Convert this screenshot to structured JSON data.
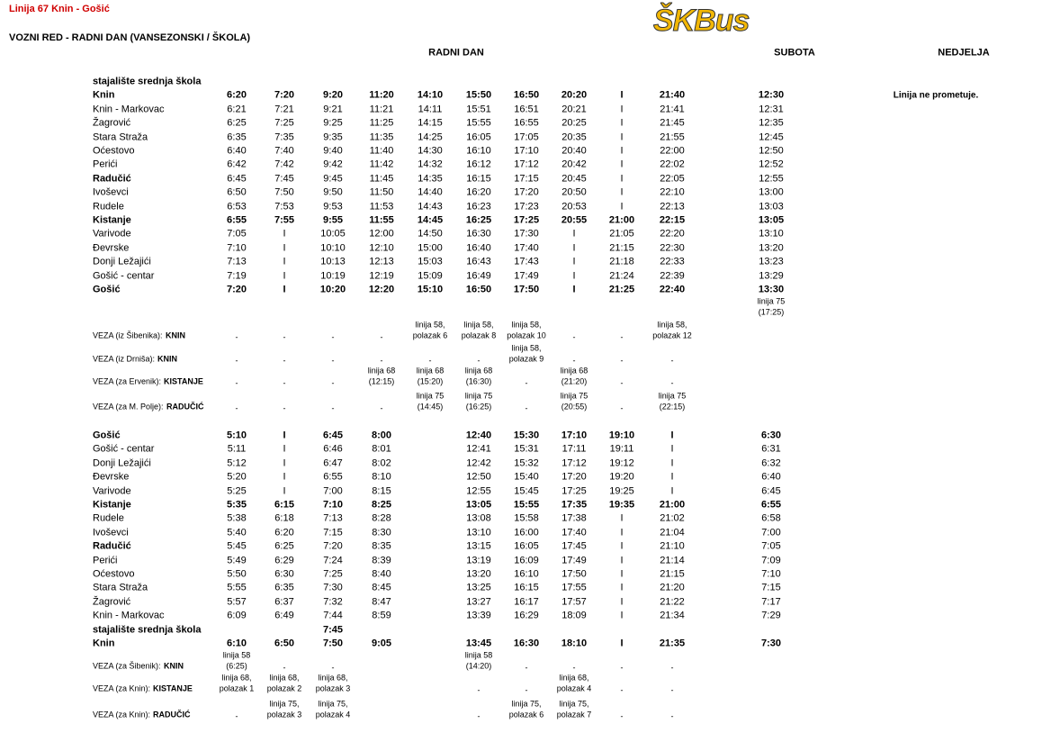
{
  "header": {
    "title": "Linija 67 Knin - Gošić",
    "subtitle": "VOZNI RED - RADNI DAN (VANSEZONSKI / ŠKOLA)",
    "logo": "ŠKBus"
  },
  "columns": {
    "weekday": "RADNI DAN",
    "saturday": "SUBOTA",
    "sunday": "NEDJELJA"
  },
  "sunday_note": "Linija ne prometuje.",
  "outbound": {
    "rows": [
      {
        "stop": "stajalište srednja škola"
      },
      {
        "stop": "Knin",
        "times": [
          "6:20",
          "7:20",
          "9:20",
          "11:20",
          "14:10",
          "15:50",
          "16:50",
          "20:20",
          "I",
          "21:40",
          "12:30"
        ]
      },
      {
        "stop": "Knin - Markovac",
        "times": [
          "6:21",
          "7:21",
          "9:21",
          "11:21",
          "14:11",
          "15:51",
          "16:51",
          "20:21",
          "I",
          "21:41",
          "12:31"
        ]
      },
      {
        "stop": "Žagrović",
        "times": [
          "6:25",
          "7:25",
          "9:25",
          "11:25",
          "14:15",
          "15:55",
          "16:55",
          "20:25",
          "I",
          "21:45",
          "12:35"
        ]
      },
      {
        "stop": "Stara Straža",
        "times": [
          "6:35",
          "7:35",
          "9:35",
          "11:35",
          "14:25",
          "16:05",
          "17:05",
          "20:35",
          "I",
          "21:55",
          "12:45"
        ]
      },
      {
        "stop": "Oćestovo",
        "times": [
          "6:40",
          "7:40",
          "9:40",
          "11:40",
          "14:30",
          "16:10",
          "17:10",
          "20:40",
          "I",
          "22:00",
          "12:50"
        ]
      },
      {
        "stop": "Perići",
        "times": [
          "6:42",
          "7:42",
          "9:42",
          "11:42",
          "14:32",
          "16:12",
          "17:12",
          "20:42",
          "I",
          "22:02",
          "12:52"
        ]
      },
      {
        "stop": "Radučić",
        "times": [
          "6:45",
          "7:45",
          "9:45",
          "11:45",
          "14:35",
          "16:15",
          "17:15",
          "20:45",
          "I",
          "22:05",
          "12:55"
        ]
      },
      {
        "stop": "Ivoševci",
        "times": [
          "6:50",
          "7:50",
          "9:50",
          "11:50",
          "14:40",
          "16:20",
          "17:20",
          "20:50",
          "I",
          "22:10",
          "13:00"
        ]
      },
      {
        "stop": "Rudele",
        "times": [
          "6:53",
          "7:53",
          "9:53",
          "11:53",
          "14:43",
          "16:23",
          "17:23",
          "20:53",
          "I",
          "22:13",
          "13:03"
        ]
      },
      {
        "stop": "Kistanje",
        "times": [
          "6:55",
          "7:55",
          "9:55",
          "11:55",
          "14:45",
          "16:25",
          "17:25",
          "20:55",
          "21:00",
          "22:15",
          "13:05"
        ]
      },
      {
        "stop": "Varivode",
        "times": [
          "7:05",
          "I",
          "10:05",
          "12:00",
          "14:50",
          "16:30",
          "17:30",
          "I",
          "21:05",
          "22:20",
          "13:10"
        ]
      },
      {
        "stop": "Đevrske",
        "times": [
          "7:10",
          "I",
          "10:10",
          "12:10",
          "15:00",
          "16:40",
          "17:40",
          "I",
          "21:15",
          "22:30",
          "13:20"
        ]
      },
      {
        "stop": "Donji Ležajići",
        "times": [
          "7:13",
          "I",
          "10:13",
          "12:13",
          "15:03",
          "16:43",
          "17:43",
          "I",
          "21:18",
          "22:33",
          "13:23"
        ]
      },
      {
        "stop": "Gošić - centar",
        "times": [
          "7:19",
          "I",
          "10:19",
          "12:19",
          "15:09",
          "16:49",
          "17:49",
          "I",
          "21:24",
          "22:39",
          "13:29"
        ]
      },
      {
        "stop": "Gošić",
        "times": [
          "7:20",
          "I",
          "10:20",
          "12:20",
          "15:10",
          "16:50",
          "17:50",
          "I",
          "21:25",
          "22:40",
          "13:30"
        ]
      }
    ],
    "saturday_note": [
      "linija 75",
      "(17:25)"
    ],
    "connections": [
      {
        "label": "VEZA (iz Šibenika):",
        "stop": "KNIN",
        "cells": [
          "-",
          "-",
          "-",
          "-",
          [
            "linija 58,",
            "polazak 6"
          ],
          [
            "linija 58,",
            "polazak 8"
          ],
          [
            "linija 58,",
            "polazak 10"
          ],
          "-",
          "-",
          [
            "linija 58,",
            "polazak 12"
          ]
        ]
      },
      {
        "label": "VEZA (iz Drniša):",
        "stop": "KNIN",
        "cells": [
          "-",
          "-",
          "-",
          "-",
          "-",
          "-",
          [
            "linija 58,",
            "polazak 9"
          ],
          "-",
          "-",
          "-"
        ]
      },
      {
        "label": "VEZA (za Ervenik):",
        "stop": "KISTANJE",
        "cells": [
          "-",
          "-",
          "-",
          [
            "linija 68",
            "(12:15)"
          ],
          [
            "linija 68",
            "(15:20)"
          ],
          [
            "linija 68",
            "(16:30)"
          ],
          "-",
          [
            "linija 68",
            "(21:20)"
          ],
          "-",
          "-"
        ]
      },
      {
        "label": "VEZA (za M. Polje):",
        "stop": "RADUČIĆ",
        "cells": [
          "-",
          "-",
          "-",
          "-",
          [
            "linija 75",
            "(14:45)"
          ],
          [
            "linija 75",
            "(16:25)"
          ],
          "-",
          [
            "linija 75",
            "(20:55)"
          ],
          "-",
          [
            "linija 75",
            "(22:15)"
          ]
        ]
      }
    ]
  },
  "inbound": {
    "rows": [
      {
        "stop": "Gošić",
        "times": [
          "5:10",
          "I",
          "6:45",
          "8:00",
          null,
          "12:40",
          "15:30",
          "17:10",
          "19:10",
          "I",
          "6:30"
        ]
      },
      {
        "stop": "Gošić - centar",
        "times": [
          "5:11",
          "I",
          "6:46",
          "8:01",
          null,
          "12:41",
          "15:31",
          "17:11",
          "19:11",
          "I",
          "6:31"
        ]
      },
      {
        "stop": "Donji Ležajići",
        "times": [
          "5:12",
          "I",
          "6:47",
          "8:02",
          null,
          "12:42",
          "15:32",
          "17:12",
          "19:12",
          "I",
          "6:32"
        ]
      },
      {
        "stop": "Đevrske",
        "times": [
          "5:20",
          "I",
          "6:55",
          "8:10",
          null,
          "12:50",
          "15:40",
          "17:20",
          "19:20",
          "I",
          "6:40"
        ]
      },
      {
        "stop": "Varivode",
        "times": [
          "5:25",
          "I",
          "7:00",
          "8:15",
          null,
          "12:55",
          "15:45",
          "17:25",
          "19:25",
          "I",
          "6:45"
        ]
      },
      {
        "stop": "Kistanje",
        "times": [
          "5:35",
          "6:15",
          "7:10",
          "8:25",
          null,
          "13:05",
          "15:55",
          "17:35",
          "19:35",
          "21:00",
          "6:55"
        ]
      },
      {
        "stop": "Rudele",
        "times": [
          "5:38",
          "6:18",
          "7:13",
          "8:28",
          null,
          "13:08",
          "15:58",
          "17:38",
          "I",
          "21:02",
          "6:58"
        ]
      },
      {
        "stop": "Ivoševci",
        "times": [
          "5:40",
          "6:20",
          "7:15",
          "8:30",
          null,
          "13:10",
          "16:00",
          "17:40",
          "I",
          "21:04",
          "7:00"
        ]
      },
      {
        "stop": "Radučić",
        "times": [
          "5:45",
          "6:25",
          "7:20",
          "8:35",
          null,
          "13:15",
          "16:05",
          "17:45",
          "I",
          "21:10",
          "7:05"
        ]
      },
      {
        "stop": "Perići",
        "times": [
          "5:49",
          "6:29",
          "7:24",
          "8:39",
          null,
          "13:19",
          "16:09",
          "17:49",
          "I",
          "21:14",
          "7:09"
        ]
      },
      {
        "stop": "Oćestovo",
        "times": [
          "5:50",
          "6:30",
          "7:25",
          "8:40",
          null,
          "13:20",
          "16:10",
          "17:50",
          "I",
          "21:15",
          "7:10"
        ]
      },
      {
        "stop": "Stara Straža",
        "times": [
          "5:55",
          "6:35",
          "7:30",
          "8:45",
          null,
          "13:25",
          "16:15",
          "17:55",
          "I",
          "21:20",
          "7:15"
        ]
      },
      {
        "stop": "Žagrović",
        "times": [
          "5:57",
          "6:37",
          "7:32",
          "8:47",
          null,
          "13:27",
          "16:17",
          "17:57",
          "I",
          "21:22",
          "7:17"
        ]
      },
      {
        "stop": "Knin - Markovac",
        "times": [
          "6:09",
          "6:49",
          "7:44",
          "8:59",
          null,
          "13:39",
          "16:29",
          "18:09",
          "I",
          "21:34",
          "7:29"
        ]
      },
      {
        "stop": "stajalište srednja škola",
        "times": [
          null,
          null,
          "7:45",
          null,
          null,
          null,
          null,
          null,
          null,
          null,
          null
        ]
      },
      {
        "stop": "Knin",
        "times": [
          "6:10",
          "6:50",
          "7:50",
          "9:05",
          null,
          "13:45",
          "16:30",
          "18:10",
          "I",
          "21:35",
          "7:30"
        ]
      }
    ],
    "connections": [
      {
        "label": "VEZA (za Šibenik):",
        "stop": "KNIN",
        "cells": [
          [
            "linija 58",
            "(6:25)"
          ],
          "-",
          "-",
          null,
          null,
          [
            "linija 58",
            "(14:20)"
          ],
          "-",
          "-",
          "-",
          "-"
        ]
      },
      {
        "label": "VEZA (za Knin):",
        "stop": "KISTANJE",
        "cells": [
          [
            "linija 68,",
            "polazak 1"
          ],
          [
            "linija 68,",
            "polazak 2"
          ],
          [
            "linija 68,",
            "polazak 3"
          ],
          null,
          null,
          "-",
          "-",
          [
            "linija 68,",
            "polazak 4"
          ],
          "-",
          "-"
        ]
      },
      {
        "label": "VEZA (za Knin):",
        "stop": "RADUČIĆ",
        "cells": [
          "-",
          [
            "linija 75,",
            "polazak 3"
          ],
          [
            "linija 75,",
            "polazak 4"
          ],
          null,
          null,
          "-",
          [
            "linija 75,",
            "polazak 6"
          ],
          [
            "linija 75,",
            "polazak 7"
          ],
          "-",
          "-"
        ]
      }
    ]
  }
}
